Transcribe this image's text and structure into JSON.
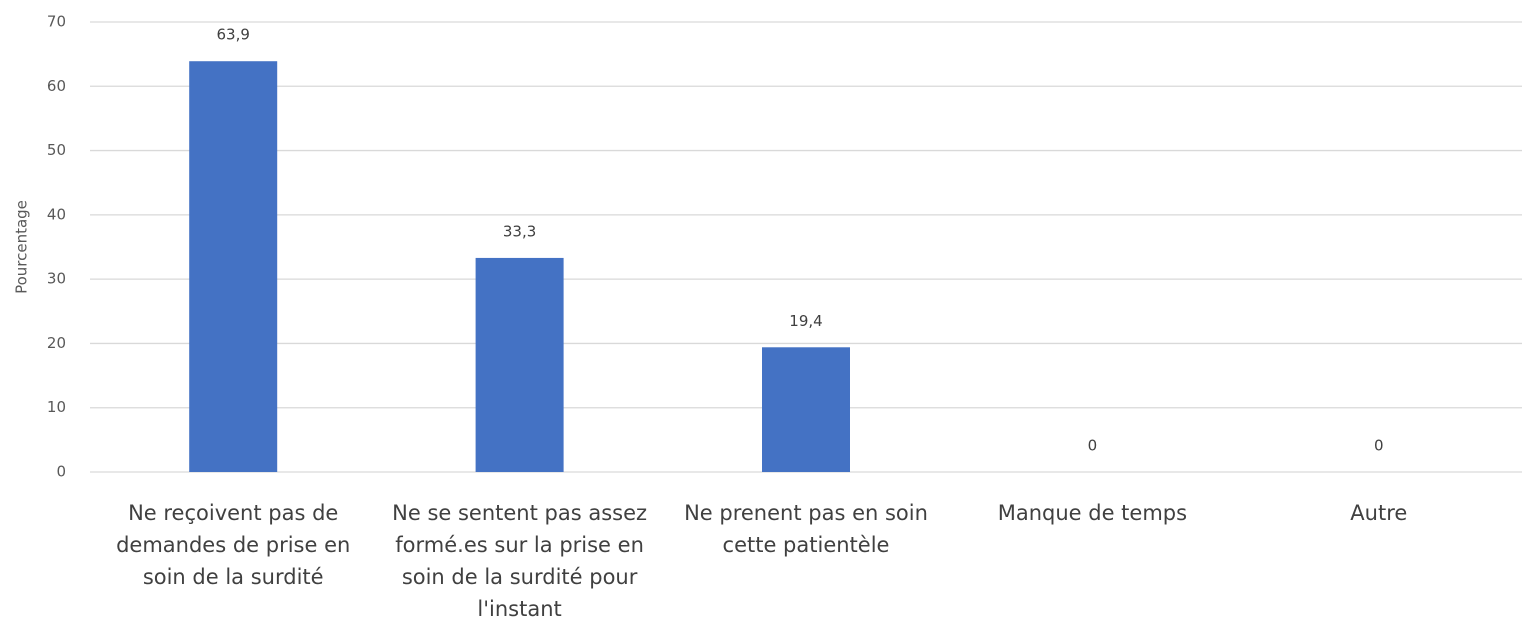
{
  "chart_data": {
    "type": "bar",
    "y_label": "Pourcentage",
    "categories": [
      "Ne reçoivent pas de demandes de prise en soin de la surdité",
      "Ne se sentent pas assez formé.es sur la prise en soin de la surdité pour l'instant",
      "Ne prenent pas en soin cette patientèle",
      "Manque de temps",
      "Autre"
    ],
    "values": [
      63.9,
      33.3,
      19.4,
      0,
      0
    ],
    "value_labels": [
      "63,9",
      "33,3",
      "19,4",
      "0",
      "0"
    ],
    "color": "#4472c4",
    "ylim": [
      0,
      70
    ],
    "yticks": [
      0,
      10,
      20,
      30,
      40,
      50,
      60,
      70
    ],
    "grid": true
  }
}
